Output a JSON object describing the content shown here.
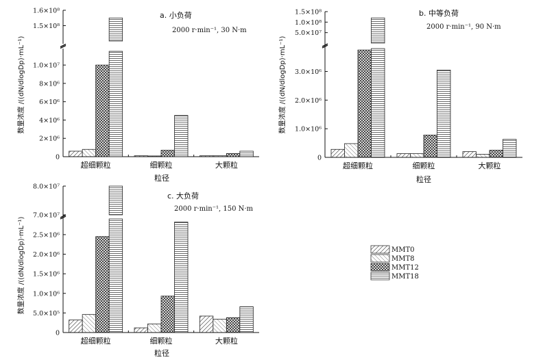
{
  "chart_data": [
    {
      "type": "bar",
      "panel": "a",
      "title": "a. 小负荷",
      "subtitle": "2000 r·min⁻¹, 30 N·m",
      "xlabel": "粒径",
      "ylabel": "数量浓度 /((dN/dlogDp)·mL⁻¹)",
      "categories": [
        "超细颗粒",
        "细颗粒",
        "大颗粒"
      ],
      "axis_break": true,
      "lower_ylim": [
        0,
        11500000
      ],
      "lower_ticks": [
        0,
        2000000,
        4000000,
        6000000,
        8000000,
        10000000
      ],
      "lower_tick_labels": [
        "0",
        "2×10⁶",
        "4×10⁶",
        "6×10⁶",
        "8×10⁶",
        "1.0×10⁷"
      ],
      "upper_ylim": [
        140000000,
        160000000
      ],
      "upper_ticks": [
        150000000,
        160000000
      ],
      "upper_tick_labels": [
        "1.5×10⁸",
        "1.6×10⁸"
      ],
      "series": [
        {
          "name": "MMT0",
          "values": [
            600000,
            100000,
            100000
          ]
        },
        {
          "name": "MMT8",
          "values": [
            800000,
            80000,
            100000
          ]
        },
        {
          "name": "MMT12",
          "values": [
            10000000,
            700000,
            350000
          ]
        },
        {
          "name": "MMT18",
          "values": [
            155000000,
            4500000,
            600000
          ]
        }
      ]
    },
    {
      "type": "bar",
      "panel": "b",
      "title": "b. 中等负荷",
      "subtitle": "2000 r·min⁻¹, 90 N·m",
      "xlabel": "粒径",
      "ylabel": "数量浓度 /((dN/dlogDp)·mL⁻¹)",
      "categories": [
        "超细颗粒",
        "细颗粒",
        "大颗粒"
      ],
      "axis_break": true,
      "lower_ylim": [
        0,
        3800000
      ],
      "lower_ticks": [
        0,
        1000000,
        2000000,
        3000000
      ],
      "lower_tick_labels": [
        "0",
        "1.0×10⁶",
        "2.0×10⁶",
        "3.0×10⁶"
      ],
      "upper_ylim": [
        0,
        150000000
      ],
      "upper_ticks": [
        50000000,
        100000000,
        150000000
      ],
      "upper_tick_labels": [
        "5.0×10⁷",
        "1.0×10⁸",
        "1.5×10⁸"
      ],
      "series": [
        {
          "name": "MMT0",
          "values": [
            280000,
            130000,
            200000
          ]
        },
        {
          "name": "MMT8",
          "values": [
            480000,
            130000,
            110000
          ]
        },
        {
          "name": "MMT12",
          "values": [
            3750000,
            780000,
            250000
          ]
        },
        {
          "name": "MMT18",
          "values": [
            120000000,
            3050000,
            630000
          ]
        }
      ]
    },
    {
      "type": "bar",
      "panel": "c",
      "title": "c. 大负荷",
      "subtitle": "2000 r·min⁻¹, 150 N·m",
      "xlabel": "粒径",
      "ylabel": "数量浓度 /((dN/dlogDp)·mL⁻¹)",
      "categories": [
        "超细颗粒",
        "细颗粒",
        "大颗粒"
      ],
      "axis_break": true,
      "lower_ylim": [
        0,
        2900000
      ],
      "lower_ticks": [
        0,
        500000,
        1000000,
        1500000,
        2000000,
        2500000
      ],
      "lower_tick_labels": [
        "0",
        "5.0×10⁵",
        "1.0×10⁶",
        "1.5×10⁶",
        "2.0×10⁶",
        "2.5×10⁶"
      ],
      "upper_ylim": [
        70000000,
        80000000
      ],
      "upper_ticks": [
        70000000,
        80000000
      ],
      "upper_tick_labels": [
        "7.0×10⁷",
        "8.0×10⁷"
      ],
      "series": [
        {
          "name": "MMT0",
          "values": [
            320000,
            120000,
            420000
          ]
        },
        {
          "name": "MMT8",
          "values": [
            460000,
            220000,
            340000
          ]
        },
        {
          "name": "MMT12",
          "values": [
            2450000,
            930000,
            380000
          ]
        },
        {
          "name": "MMT18",
          "values": [
            80000000,
            2820000,
            660000
          ]
        }
      ]
    }
  ],
  "legend": {
    "entries": [
      {
        "name": "MMT0",
        "pattern": "diag"
      },
      {
        "name": "MMT8",
        "pattern": "anti"
      },
      {
        "name": "MMT12",
        "pattern": "cross"
      },
      {
        "name": "MMT18",
        "pattern": "horiz"
      }
    ]
  }
}
